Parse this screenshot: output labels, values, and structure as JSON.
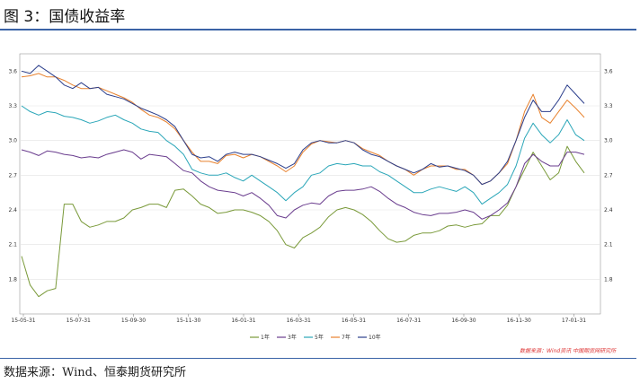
{
  "header": {
    "title": "图 3：国债收益率"
  },
  "footer": {
    "source": "数据来源：Wind、恒泰期货研究所",
    "watermark": "数据来源：Wind资讯 中国期货网研究所"
  },
  "chart_data": {
    "type": "line",
    "title": "",
    "xlabel": "",
    "ylabel": "",
    "ylim": [
      1.5,
      3.75
    ],
    "yticks": [
      1.8,
      2.1,
      2.4,
      2.7,
      3.0,
      3.3,
      3.6
    ],
    "xtick_labels": [
      "15-05-31",
      "15-07-31",
      "15-09-30",
      "15-11-30",
      "16-01-31",
      "16-03-31",
      "16-05-31",
      "16-07-31",
      "16-09-30",
      "16-11-30",
      "17-01-31"
    ],
    "grid": true,
    "legend_position": "bottom",
    "series_colors": [
      "#7a9a3a",
      "#6a3d8e",
      "#2aa6b8",
      "#e8822e",
      "#2c3f8c"
    ],
    "series": [
      {
        "name": "1年",
        "values": [
          2.0,
          1.75,
          1.65,
          1.7,
          1.72,
          2.45,
          2.45,
          2.3,
          2.25,
          2.27,
          2.3,
          2.3,
          2.33,
          2.4,
          2.42,
          2.45,
          2.45,
          2.42,
          2.57,
          2.58,
          2.52,
          2.45,
          2.42,
          2.37,
          2.38,
          2.4,
          2.4,
          2.38,
          2.35,
          2.3,
          2.22,
          2.1,
          2.07,
          2.16,
          2.2,
          2.25,
          2.34,
          2.4,
          2.42,
          2.4,
          2.36,
          2.3,
          2.22,
          2.15,
          2.12,
          2.13,
          2.18,
          2.2,
          2.2,
          2.22,
          2.26,
          2.27,
          2.25,
          2.27,
          2.28,
          2.35,
          2.35,
          2.44,
          2.6,
          2.75,
          2.9,
          2.78,
          2.66,
          2.72,
          2.95,
          2.82,
          2.72
        ]
      },
      {
        "name": "3年",
        "values": [
          2.92,
          2.9,
          2.87,
          2.91,
          2.9,
          2.88,
          2.87,
          2.85,
          2.86,
          2.85,
          2.88,
          2.9,
          2.92,
          2.9,
          2.84,
          2.88,
          2.87,
          2.86,
          2.8,
          2.74,
          2.72,
          2.65,
          2.6,
          2.57,
          2.56,
          2.55,
          2.52,
          2.55,
          2.5,
          2.44,
          2.35,
          2.33,
          2.4,
          2.44,
          2.46,
          2.45,
          2.52,
          2.56,
          2.57,
          2.57,
          2.58,
          2.6,
          2.56,
          2.5,
          2.45,
          2.42,
          2.38,
          2.36,
          2.35,
          2.37,
          2.37,
          2.38,
          2.4,
          2.38,
          2.32,
          2.35,
          2.4,
          2.46,
          2.6,
          2.8,
          2.88,
          2.82,
          2.78,
          2.78,
          2.9,
          2.9,
          2.88
        ]
      },
      {
        "name": "5年",
        "values": [
          3.3,
          3.25,
          3.22,
          3.25,
          3.24,
          3.21,
          3.2,
          3.18,
          3.15,
          3.17,
          3.2,
          3.22,
          3.18,
          3.15,
          3.1,
          3.08,
          3.07,
          3.0,
          2.95,
          2.88,
          2.75,
          2.72,
          2.7,
          2.7,
          2.72,
          2.68,
          2.65,
          2.7,
          2.65,
          2.6,
          2.55,
          2.48,
          2.55,
          2.6,
          2.7,
          2.72,
          2.78,
          2.8,
          2.79,
          2.8,
          2.78,
          2.78,
          2.73,
          2.7,
          2.65,
          2.6,
          2.55,
          2.55,
          2.58,
          2.6,
          2.58,
          2.56,
          2.6,
          2.55,
          2.45,
          2.5,
          2.55,
          2.62,
          2.78,
          3.02,
          3.15,
          3.05,
          2.98,
          3.05,
          3.18,
          3.05,
          3.0
        ]
      },
      {
        "name": "7年",
        "values": [
          3.55,
          3.56,
          3.58,
          3.55,
          3.55,
          3.52,
          3.48,
          3.45,
          3.45,
          3.46,
          3.43,
          3.4,
          3.37,
          3.33,
          3.27,
          3.22,
          3.2,
          3.16,
          3.1,
          3.0,
          2.9,
          2.82,
          2.82,
          2.8,
          2.87,
          2.88,
          2.85,
          2.88,
          2.86,
          2.82,
          2.78,
          2.73,
          2.78,
          2.9,
          2.97,
          3.0,
          2.99,
          2.98,
          3.0,
          2.98,
          2.93,
          2.9,
          2.87,
          2.82,
          2.78,
          2.75,
          2.7,
          2.75,
          2.78,
          2.78,
          2.78,
          2.75,
          2.75,
          2.7,
          2.62,
          2.65,
          2.72,
          2.8,
          3.0,
          3.25,
          3.4,
          3.2,
          3.15,
          3.25,
          3.35,
          3.28,
          3.2
        ]
      },
      {
        "name": "10年",
        "values": [
          3.6,
          3.58,
          3.65,
          3.6,
          3.55,
          3.48,
          3.45,
          3.5,
          3.45,
          3.46,
          3.4,
          3.38,
          3.36,
          3.32,
          3.28,
          3.25,
          3.22,
          3.18,
          3.12,
          3.0,
          2.88,
          2.85,
          2.86,
          2.82,
          2.88,
          2.9,
          2.88,
          2.88,
          2.86,
          2.83,
          2.8,
          2.76,
          2.8,
          2.92,
          2.98,
          3.0,
          2.98,
          2.98,
          3.0,
          2.98,
          2.92,
          2.88,
          2.86,
          2.82,
          2.78,
          2.75,
          2.72,
          2.75,
          2.8,
          2.77,
          2.78,
          2.76,
          2.74,
          2.7,
          2.62,
          2.65,
          2.72,
          2.82,
          3.0,
          3.2,
          3.35,
          3.25,
          3.25,
          3.35,
          3.48,
          3.4,
          3.32
        ]
      }
    ]
  }
}
